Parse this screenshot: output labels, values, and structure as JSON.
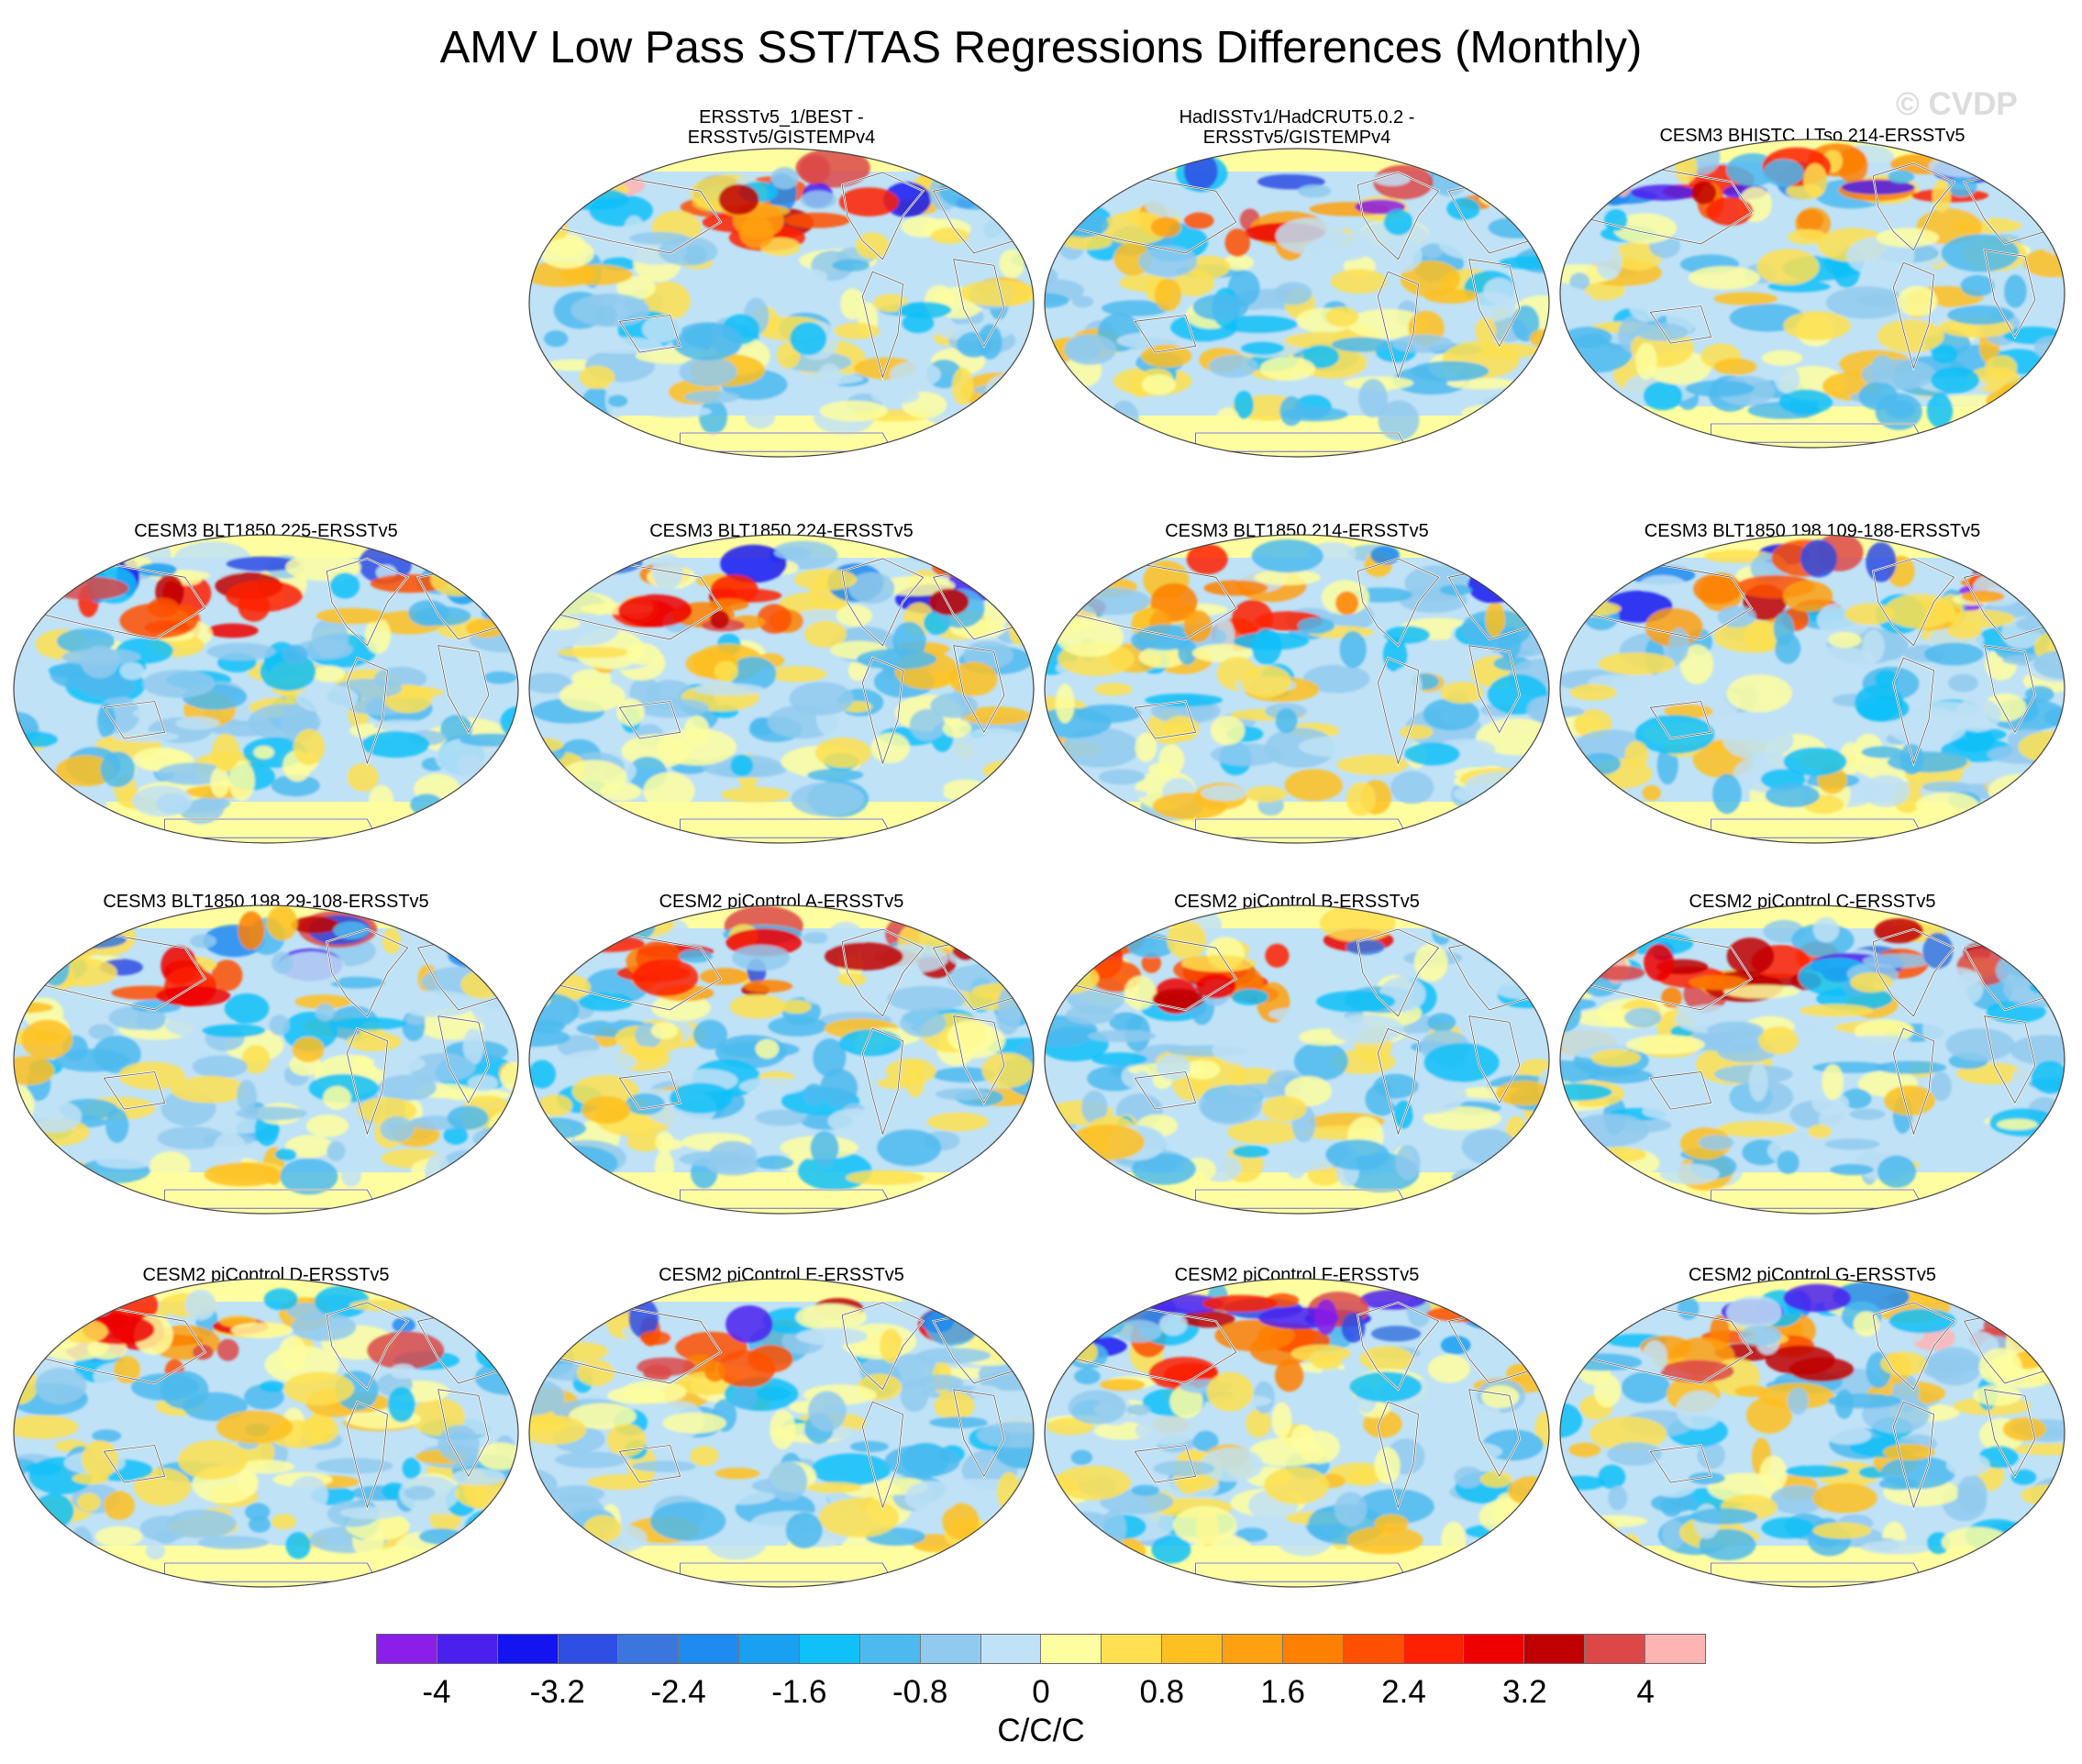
{
  "title": "AMV Low Pass SST/TAS Regressions Differences (Monthly)",
  "watermark": "© CVDP",
  "chart_data": {
    "type": "heatmap",
    "projection": "Robinson",
    "variable": "SST/TAS regression differences",
    "units": "C/C/C",
    "panels": [
      {
        "title_lines": [
          "ERSSTv5_1/BEST -",
          "ERSSTv5/GISTEMPv4"
        ]
      },
      {
        "title_lines": [
          "HadISSTv1/HadCRUT5.0.2 -",
          "ERSSTv5/GISTEMPv4"
        ]
      },
      {
        "title_lines": [
          "CESM3 BHISTC_LTso 214-ERSSTv5"
        ]
      },
      {
        "title_lines": [
          "CESM3 BLT1850 225-ERSSTv5"
        ]
      },
      {
        "title_lines": [
          "CESM3 BLT1850 224-ERSSTv5"
        ]
      },
      {
        "title_lines": [
          "CESM3 BLT1850 214-ERSSTv5"
        ]
      },
      {
        "title_lines": [
          "CESM3 BLT1850 198 109-188-ERSSTv5"
        ]
      },
      {
        "title_lines": [
          "CESM3 BLT1850 198 29-108-ERSSTv5"
        ]
      },
      {
        "title_lines": [
          "CESM2 piControl A-ERSSTv5"
        ]
      },
      {
        "title_lines": [
          "CESM2 piControl B-ERSSTv5"
        ]
      },
      {
        "title_lines": [
          "CESM2 piControl C-ERSSTv5"
        ]
      },
      {
        "title_lines": [
          "CESM2 piControl D-ERSSTv5"
        ]
      },
      {
        "title_lines": [
          "CESM2 piControl E-ERSSTv5"
        ]
      },
      {
        "title_lines": [
          "CESM2 piControl F-ERSSTv5"
        ]
      },
      {
        "title_lines": [
          "CESM2 piControl G-ERSSTv5"
        ]
      }
    ],
    "colorbar": {
      "levels": [
        -4,
        -3.6,
        -3.2,
        -2.8,
        -2.4,
        -2,
        -1.6,
        -1.2,
        -0.8,
        -0.4,
        0,
        0.4,
        0.8,
        1.2,
        1.6,
        2,
        2.4,
        2.8,
        3.2,
        3.6,
        4
      ],
      "tick_labels": [
        "-4",
        "-3.2",
        "-2.4",
        "-1.6",
        "-0.8",
        "0",
        "0.8",
        "1.6",
        "2.4",
        "3.2",
        "4"
      ],
      "colors": [
        "#8b1ee8",
        "#4b1fee",
        "#1414f0",
        "#2e4ee4",
        "#3a76de",
        "#1f8af0",
        "#1aa0f0",
        "#10c0f8",
        "#4cbaee",
        "#90caee",
        "#c0e2f6",
        "#fefea0",
        "#fee050",
        "#fec020",
        "#fea010",
        "#fe8000",
        "#fe5000",
        "#fe2000",
        "#ee0000",
        "#c00000",
        "#dc4848",
        "#ffb4b4"
      ]
    }
  }
}
